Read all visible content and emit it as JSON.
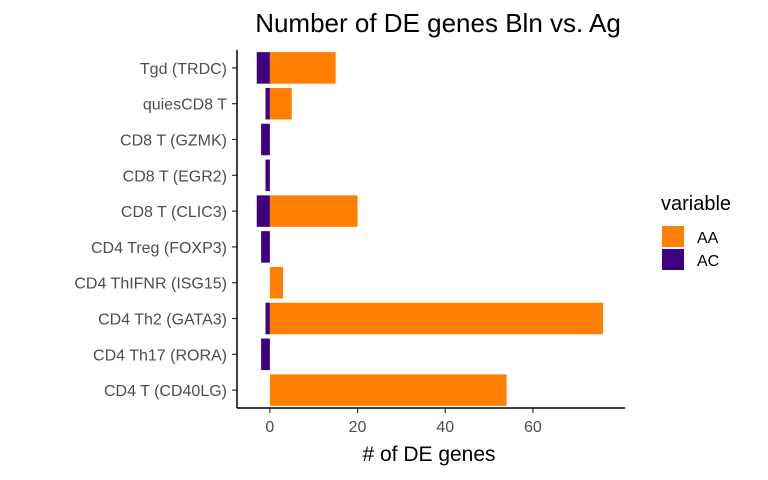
{
  "chart_data": {
    "type": "bar",
    "orientation": "horizontal",
    "title": "Number of DE genes Bln vs. Ag",
    "xlabel": "# of DE genes",
    "ylabel": "",
    "xlim": [
      -7.5,
      81
    ],
    "xticks": [
      0,
      20,
      40,
      60
    ],
    "categories": [
      "Tgd (TRDC)",
      "quiesCD8 T",
      "CD8 T (GZMK)",
      "CD8 T (EGR2)",
      "CD8 T (CLIC3)",
      "CD4 Treg (FOXP3)",
      "CD4 ThIFNR (ISG15)",
      "CD4 Th2 (GATA3)",
      "CD4 Th17 (RORA)",
      "CD4 T (CD40LG)"
    ],
    "series": [
      {
        "name": "AA",
        "color": "#ff8000",
        "values": [
          15,
          5,
          0,
          0,
          20,
          0,
          3,
          76,
          0,
          54
        ]
      },
      {
        "name": "AC",
        "color": "#3f007d",
        "values": [
          -3,
          -1,
          -2,
          -1,
          -3,
          -2,
          0,
          -1,
          -2,
          0
        ]
      }
    ],
    "legend": {
      "title": "variable",
      "position": "right"
    },
    "grid": false
  }
}
